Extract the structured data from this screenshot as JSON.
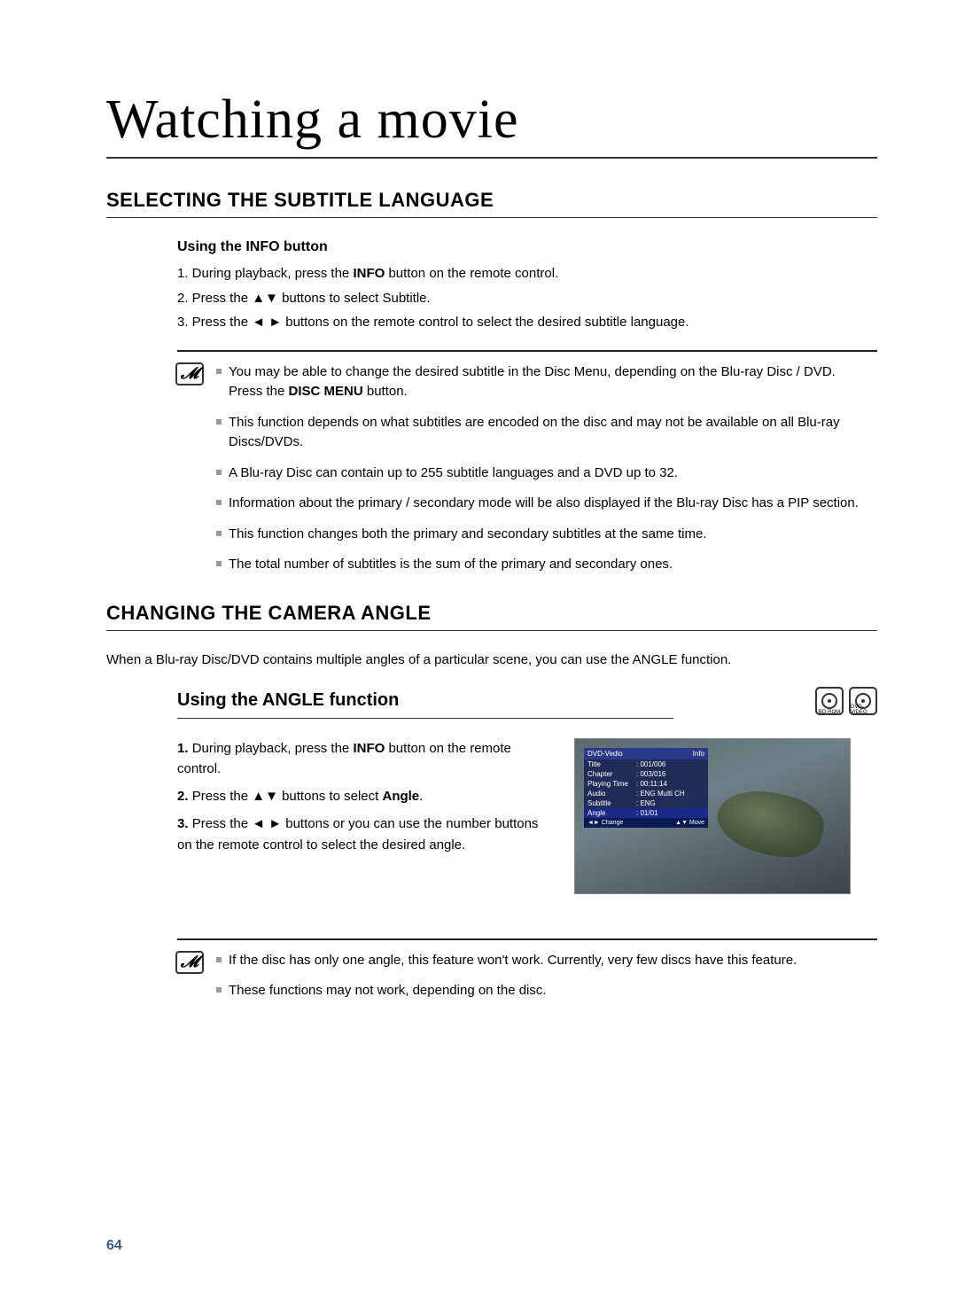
{
  "page_title": "Watching a movie",
  "page_number": "64",
  "section1": {
    "heading": "SELECTING THE SUBTITLE LANGUAGE",
    "sub_heading": "Using the INFO button",
    "step1_pre": "1. During playback, press the ",
    "step1_bold": "INFO",
    "step1_post": " button on the remote control.",
    "step2": "2. Press the ▲▼ buttons to select Subtitle.",
    "step3": "3. Press the ◄ ► buttons on the remote control to select the desired subtitle language.",
    "note1_line1": "You may be able to change the desired subtitle in the Disc Menu, depending on the Blu-ray Disc / DVD.",
    "note1_line2_pre": "Press the ",
    "note1_line2_bold": "DISC MENU",
    "note1_line2_post": " button.",
    "note2": "This function depends on what subtitles are encoded on the disc and may not be available on all Blu-ray Discs/DVDs.",
    "note3": "A Blu-ray Disc can contain up to 255 subtitle languages and a DVD up to 32.",
    "note4": "Information about the primary / secondary mode will be also displayed if the Blu-ray Disc has a PIP section.",
    "note5": "This function changes both the primary and secondary subtitles at the same time.",
    "note6": "The total number of subtitles is the sum of the primary and secondary ones."
  },
  "section2": {
    "heading": "CHANGING THE CAMERA ANGLE",
    "intro": "When a Blu-ray Disc/DVD contains multiple angles of a particular scene, you can use the ANGLE function.",
    "subsection_heading": "Using the ANGLE function",
    "step1_pre": "During playback, press the ",
    "step1_bold": "INFO",
    "step1_post": " button on the remote control.",
    "step2_pre": "Press the ▲▼ buttons to select ",
    "step2_bold": "Angle",
    "step2_post": ".",
    "step3": "Press the ◄ ► buttons or you can use the number buttons on the remote control to select the desired angle.",
    "osd": {
      "title_left": "DVD-Vedio",
      "title_right": "Info",
      "rows": [
        {
          "k": "Title",
          "v": ": 001/006"
        },
        {
          "k": "Chapter",
          "v": ": 003/016"
        },
        {
          "k": "Playing Time",
          "v": ": 00:11:14"
        },
        {
          "k": "Audio",
          "v": ": ENG Multi CH"
        },
        {
          "k": "Subtitle",
          "v": ": ENG"
        },
        {
          "k": "Angle",
          "v": ": 01/01"
        }
      ],
      "foot_left": "◄► Change",
      "foot_right": "▲▼ Move"
    },
    "disc_labels": {
      "bd": "BD-ROM",
      "dvd": "DVD-VIDEO"
    },
    "note1": "If the disc has only one angle, this feature won't work. Currently, very few discs have this feature.",
    "note2": "These functions may not work, depending on the disc."
  }
}
